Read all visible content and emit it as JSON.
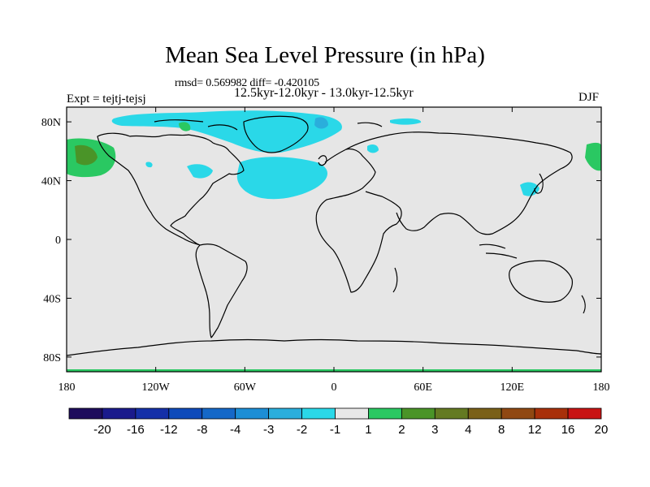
{
  "title": "Mean Sea Level Pressure (in hPa)",
  "stats": "rmsd= 0.569982 diff= -0.420105",
  "period": "12.5kyr-12.0kyr - 13.0kyr-12.5kyr",
  "experiment": "Expt = tejtj-tejsj",
  "season": "DJF",
  "axes": {
    "x_ticks": [
      "180",
      "120W",
      "60W",
      "0",
      "60E",
      "120E",
      "180"
    ],
    "y_ticks": [
      "80N",
      "40N",
      "0",
      "40S",
      "80S"
    ]
  },
  "colorbar": {
    "labels": [
      "-20",
      "-16",
      "-12",
      "-8",
      "-4",
      "-3",
      "-2",
      "-1",
      "1",
      "2",
      "3",
      "4",
      "8",
      "12",
      "16",
      "20"
    ],
    "colors": [
      "#1e0c5c",
      "#1a1a8c",
      "#1530a8",
      "#0e4aba",
      "#1568c8",
      "#1c8ed6",
      "#2aaedc",
      "#2ad8e8",
      "#e8e8e8",
      "#2ac862",
      "#4a9428",
      "#647a22",
      "#7a6018",
      "#904812",
      "#a8300a",
      "#c81414"
    ]
  },
  "map": {
    "background": "#e6e6e6",
    "negative_color": "#2ad8e8",
    "negative_strong_color": "#2aaedc",
    "positive_color": "#2ac862",
    "positive_strong_color": "#4a9428"
  }
}
